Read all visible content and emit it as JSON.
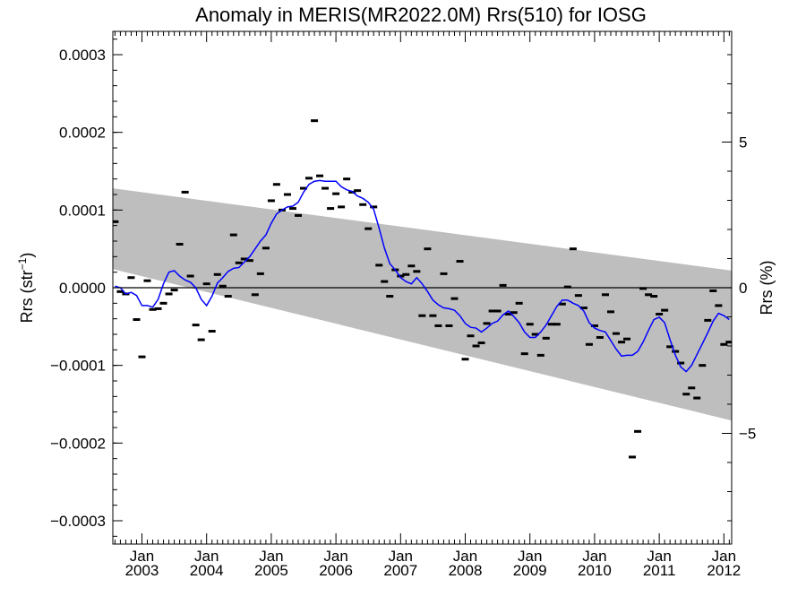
{
  "chart_data": {
    "type": "scatter",
    "title": "Anomaly in MERIS(MR2022.0M) Rrs(510) for IOSG",
    "ylabel_left": "Rrs (str",
    "ylabel_left_sup": "−1",
    "ylabel_left_close": ")",
    "ylabel_right": "Rrs (%)",
    "xlim": [
      2002.55,
      2012.12
    ],
    "ylim_left": [
      -0.00033,
      0.00033
    ],
    "ylim_right": [
      -8.8,
      8.8
    ],
    "x_ticks": [
      {
        "month": "Jan",
        "year": "2003",
        "x": 2003.0
      },
      {
        "month": "Jan",
        "year": "2004",
        "x": 2004.0
      },
      {
        "month": "Jan",
        "year": "2005",
        "x": 2005.0
      },
      {
        "month": "Jan",
        "year": "2006",
        "x": 2006.0
      },
      {
        "month": "Jan",
        "year": "2007",
        "x": 2007.0
      },
      {
        "month": "Jan",
        "year": "2008",
        "x": 2008.0
      },
      {
        "month": "Jan",
        "year": "2009",
        "x": 2009.0
      },
      {
        "month": "Jan",
        "year": "2010",
        "x": 2010.0
      },
      {
        "month": "Jan",
        "year": "2011",
        "x": 2011.0
      },
      {
        "month": "Jan",
        "year": "2012",
        "x": 2012.0
      }
    ],
    "y_ticks_left": [
      {
        "label": "0.0003",
        "value": 0.0003
      },
      {
        "label": "0.0002",
        "value": 0.0002
      },
      {
        "label": "0.0001",
        "value": 0.0001
      },
      {
        "label": "0.0000",
        "value": 0.0
      },
      {
        "label": "−0.0001",
        "value": -0.0001
      },
      {
        "label": "−0.0002",
        "value": -0.0002
      },
      {
        "label": "−0.0003",
        "value": -0.0003
      }
    ],
    "y_ticks_right": [
      {
        "label": "5",
        "value": 5
      },
      {
        "label": "0",
        "value": 0
      },
      {
        "label": "−5",
        "value": -5
      }
    ],
    "band": {
      "x": [
        2002.55,
        2012.12
      ],
      "upper": [
        0.000128,
        2.2e-05
      ],
      "lower": [
        2.4e-05,
        -0.000171
      ]
    },
    "zero_line": 0.0,
    "colors": {
      "band": "#bebebe",
      "smooth_line": "#0000ff",
      "points": "#000000",
      "zero_line": "#000000"
    },
    "series": [
      {
        "kind": "monthly_points",
        "x": [
          2002.583,
          2002.667,
          2002.75,
          2002.833,
          2002.917,
          2003.0,
          2003.083,
          2003.167,
          2003.25,
          2003.333,
          2003.417,
          2003.5,
          2003.583,
          2003.667,
          2003.75,
          2003.833,
          2003.917,
          2004.0,
          2004.083,
          2004.167,
          2004.25,
          2004.333,
          2004.417,
          2004.5,
          2004.583,
          2004.667,
          2004.75,
          2004.833,
          2004.917,
          2005.0,
          2005.083,
          2005.167,
          2005.25,
          2005.333,
          2005.417,
          2005.5,
          2005.583,
          2005.667,
          2005.75,
          2005.833,
          2005.917,
          2006.0,
          2006.083,
          2006.167,
          2006.25,
          2006.333,
          2006.417,
          2006.5,
          2006.583,
          2006.667,
          2006.75,
          2006.833,
          2006.917,
          2007.0,
          2007.083,
          2007.167,
          2007.25,
          2007.333,
          2007.417,
          2007.5,
          2007.583,
          2007.667,
          2007.75,
          2007.833,
          2007.917,
          2008.0,
          2008.083,
          2008.167,
          2008.25,
          2008.333,
          2008.417,
          2008.5,
          2008.583,
          2008.667,
          2008.75,
          2008.833,
          2008.917,
          2009.0,
          2009.083,
          2009.167,
          2009.25,
          2009.333,
          2009.417,
          2009.5,
          2009.583,
          2009.667,
          2009.75,
          2009.833,
          2009.917,
          2010.0,
          2010.083,
          2010.167,
          2010.25,
          2010.333,
          2010.417,
          2010.5,
          2010.583,
          2010.667,
          2010.75,
          2010.833,
          2010.917,
          2011.0,
          2011.083,
          2011.167,
          2011.25,
          2011.333,
          2011.417,
          2011.5,
          2011.583,
          2011.667,
          2011.75,
          2011.833,
          2011.917,
          2012.0,
          2012.083
        ],
        "y": [
          8.5e-05,
          -5e-06,
          -8e-06,
          1.3e-05,
          -4.1e-05,
          -8.9e-05,
          9e-06,
          -2.8e-05,
          -2.7e-05,
          -2e-05,
          -8e-06,
          -3e-06,
          5.6e-05,
          0.000123,
          1.5e-05,
          -4.8e-05,
          -6.7e-05,
          5e-06,
          -5.6e-05,
          1.7e-05,
          2e-06,
          -1.1e-05,
          6.8e-05,
          3.2e-05,
          3.7e-05,
          3.5e-05,
          -9e-06,
          1.8e-05,
          5.1e-05,
          0.000112,
          0.000133,
          0.0001,
          0.00012,
          0.000102,
          9.3e-05,
          0.000128,
          0.000141,
          0.000215,
          0.000144,
          0.000128,
          0.000102,
          0.000121,
          0.000104,
          0.00014,
          0.000123,
          0.000125,
          0.000107,
          7.6e-05,
          0.000104,
          2.9e-05,
          8e-06,
          -1.1e-05,
          2.3e-05,
          1.5e-05,
          1.7e-05,
          2.8e-05,
          2.1e-05,
          -3.6e-05,
          5e-05,
          -3.6e-05,
          -4.9e-05,
          1.8e-05,
          -4.9e-05,
          -1.4e-05,
          3.4e-05,
          -9.2e-05,
          -6.2e-05,
          -7.5e-05,
          -7.1e-05,
          -4.6e-05,
          -3e-05,
          -3e-05,
          3e-06,
          -3.4e-05,
          -3.2e-05,
          -2e-05,
          -8.5e-05,
          -4.7e-05,
          -6e-05,
          -8.7e-05,
          -6.5e-05,
          -4.7e-05,
          -4.7e-05,
          -2.1e-05,
          1e-06,
          5e-05,
          -1e-05,
          -2.6e-05,
          -7.3e-05,
          -4.9e-05,
          -6.4e-05,
          -9e-06,
          -3.1e-05,
          -5.9e-05,
          -7e-05,
          -6.6e-05,
          -0.000218,
          -0.000185,
          -1e-06,
          -9e-06,
          -1.1e-05,
          -3.4e-05,
          -2.9e-05,
          -7.6e-05,
          -8.2e-05,
          -9.7e-05,
          -0.000137,
          -0.000129,
          -0.000142,
          -0.0001,
          -4.2e-05,
          -4e-06,
          -2.3e-05,
          -7.3e-05,
          -7e-05
        ]
      },
      {
        "kind": "smoothed",
        "x": [
          2002.583,
          2002.667,
          2002.75,
          2002.833,
          2002.917,
          2003.0,
          2003.083,
          2003.167,
          2003.25,
          2003.333,
          2003.417,
          2003.5,
          2003.583,
          2003.667,
          2003.75,
          2003.833,
          2003.917,
          2004.0,
          2004.083,
          2004.167,
          2004.25,
          2004.333,
          2004.417,
          2004.5,
          2004.583,
          2004.667,
          2004.75,
          2004.833,
          2004.917,
          2005.0,
          2005.083,
          2005.167,
          2005.25,
          2005.333,
          2005.417,
          2005.5,
          2005.583,
          2005.667,
          2005.75,
          2005.833,
          2005.917,
          2006.0,
          2006.083,
          2006.167,
          2006.25,
          2006.333,
          2006.417,
          2006.5,
          2006.583,
          2006.667,
          2006.75,
          2006.833,
          2006.917,
          2007.0,
          2007.083,
          2007.167,
          2007.25,
          2007.333,
          2007.417,
          2007.5,
          2007.583,
          2007.667,
          2007.75,
          2007.833,
          2007.917,
          2008.0,
          2008.083,
          2008.167,
          2008.25,
          2008.333,
          2008.417,
          2008.5,
          2008.583,
          2008.667,
          2008.75,
          2008.833,
          2008.917,
          2009.0,
          2009.083,
          2009.167,
          2009.25,
          2009.333,
          2009.417,
          2009.5,
          2009.583,
          2009.667,
          2009.75,
          2009.833,
          2009.917,
          2010.0,
          2010.083,
          2010.167,
          2010.25,
          2010.333,
          2010.417,
          2010.5,
          2010.583,
          2010.667,
          2010.75,
          2010.833,
          2010.917,
          2011.0,
          2011.083,
          2011.167,
          2011.25,
          2011.333,
          2011.417,
          2011.5,
          2011.583,
          2011.667,
          2011.75,
          2011.833,
          2011.917,
          2012.0,
          2012.083
        ],
        "y": [
          2e-06,
          0.0,
          -8e-06,
          -6e-06,
          -1e-05,
          -2.3e-05,
          -2.3e-05,
          -2.5e-05,
          -1.5e-05,
          5e-06,
          2e-05,
          2.2e-05,
          1.5e-05,
          1e-05,
          7e-06,
          0.0,
          -1.5e-05,
          -2.3e-05,
          -1.1e-05,
          6e-06,
          1.3e-05,
          2.1e-05,
          2.5e-05,
          2.6e-05,
          3.3e-05,
          4e-05,
          5e-05,
          6e-05,
          6.8e-05,
          8.3e-05,
          9.5e-05,
          0.0001,
          0.000104,
          0.000105,
          0.00011,
          0.000123,
          0.000133,
          0.000137,
          0.000138,
          0.000137,
          0.000137,
          0.000137,
          0.00013,
          0.000126,
          0.000124,
          0.000118,
          0.000115,
          0.00011,
          0.000101,
          7.7e-05,
          5.1e-05,
          3.1e-05,
          2.3e-05,
          1.3e-05,
          8e-06,
          5e-06,
          1.3e-05,
          5e-06,
          -5e-06,
          -1.6e-05,
          -2.2e-05,
          -2.6e-05,
          -2.7e-05,
          -2.9e-05,
          -3.6e-05,
          -4.6e-05,
          -5.1e-05,
          -5.2e-05,
          -5.7e-05,
          -5.2e-05,
          -4.6e-05,
          -4.3e-05,
          -3.5e-05,
          -3e-05,
          -3.7e-05,
          -4.5e-05,
          -5.7e-05,
          -6.4e-05,
          -6.4e-05,
          -5.7e-05,
          -4.8e-05,
          -3.6e-05,
          -2.4e-05,
          -1.6e-05,
          -1.6e-05,
          -2e-05,
          -2.3e-05,
          -3e-05,
          -4.5e-05,
          -5.2e-05,
          -5.5e-05,
          -5.7e-05,
          -6.8e-05,
          -7.9e-05,
          -8.8e-05,
          -8.7e-05,
          -8.7e-05,
          -8.2e-05,
          -7e-05,
          -5.5e-05,
          -4.1e-05,
          -3.8e-05,
          -4.5e-05,
          -6.7e-05,
          -8.7e-05,
          -0.000102,
          -0.000108,
          -0.0001,
          -8.6e-05,
          -7.2e-05,
          -5.8e-05,
          -4.3e-05,
          -3.3e-05,
          -3.6e-05,
          -4.1e-05
        ]
      }
    ]
  }
}
